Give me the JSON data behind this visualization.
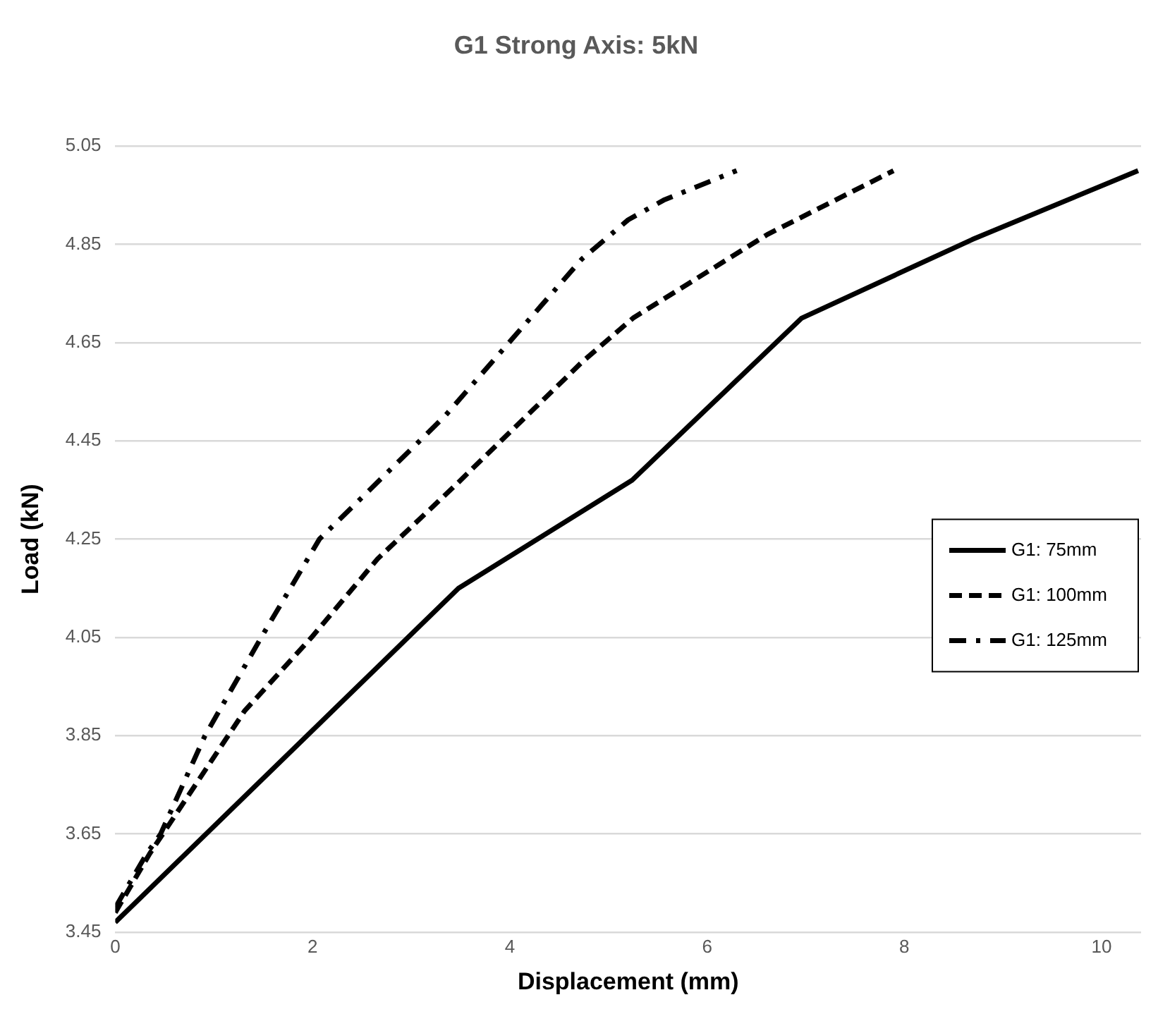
{
  "chart_data": {
    "type": "line",
    "title": "G1 Strong Axis: 5kN",
    "xlabel": "Displacement (mm)",
    "ylabel": "Load (kN)",
    "xlim": [
      0,
      10.4
    ],
    "xticks": [
      0,
      2,
      4,
      6,
      8,
      10
    ],
    "ylim": [
      3.45,
      5.05
    ],
    "yticks": [
      3.45,
      3.65,
      3.85,
      4.05,
      4.25,
      4.45,
      4.65,
      4.85,
      5.05
    ],
    "grid": "y",
    "legend": "right",
    "marker": "none",
    "series": [
      {
        "name": "G1: 75mm",
        "color": "#000000",
        "line_style": "solid",
        "x": [
          0,
          3.48,
          5.24,
          6.96,
          8.69,
          10.37
        ],
        "values": [
          3.47,
          4.15,
          4.37,
          4.7,
          4.86,
          5.0
        ]
      },
      {
        "name": "G1: 100mm",
        "color": "#000000",
        "line_style": "dashed",
        "x": [
          0,
          0.35,
          1.31,
          1.99,
          2.66,
          3.45,
          4.73,
          5.25,
          6.61,
          7.89
        ],
        "values": [
          3.49,
          3.61,
          3.9,
          4.05,
          4.21,
          4.36,
          4.61,
          4.7,
          4.87,
          5.0
        ]
      },
      {
        "name": "G1: 125mm",
        "color": "#000000",
        "line_style": "dashdot",
        "x": [
          0,
          0.32,
          0.46,
          0.91,
          1.48,
          2.07,
          3.34,
          4.73,
          5.2,
          5.56,
          6.3
        ],
        "values": [
          3.5,
          3.61,
          3.65,
          3.85,
          4.05,
          4.25,
          4.5,
          4.82,
          4.9,
          4.94,
          5.0
        ]
      }
    ]
  }
}
